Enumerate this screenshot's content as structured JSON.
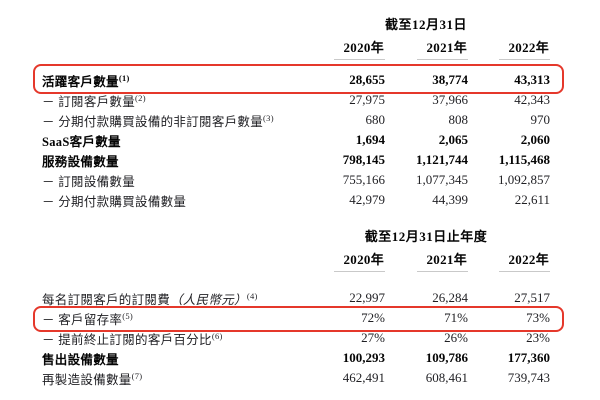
{
  "accent": {
    "highlight_red": "#e5382b",
    "underline_gray": "#c9c9c9"
  },
  "sections": [
    {
      "header": "截至12月31日",
      "years": [
        "2020年",
        "2021年",
        "2022年"
      ],
      "rows": [
        {
          "label": "活躍客戶數量",
          "sup": "(1)",
          "values": [
            "28,655",
            "38,774",
            "43,313"
          ],
          "bold": true,
          "highlighted": true
        },
        {
          "label": "－ 訂閱客戶數量",
          "sup": "(2)",
          "values": [
            "27,975",
            "37,966",
            "42,343"
          ],
          "bold": false,
          "highlighted": false
        },
        {
          "label": "－ 分期付款購買設備的非訂閱客戶數量",
          "sup": "(3)",
          "values": [
            "680",
            "808",
            "970"
          ],
          "bold": false,
          "highlighted": false
        },
        {
          "label": "SaaS客戶數量",
          "sup": "",
          "values": [
            "1,694",
            "2,065",
            "2,060"
          ],
          "bold": true,
          "highlighted": false
        },
        {
          "label": "服務設備數量",
          "sup": "",
          "values": [
            "798,145",
            "1,121,744",
            "1,115,468"
          ],
          "bold": true,
          "highlighted": false
        },
        {
          "label": "－ 訂閱設備數量",
          "sup": "",
          "values": [
            "755,166",
            "1,077,345",
            "1,092,857"
          ],
          "bold": false,
          "highlighted": false
        },
        {
          "label": "－ 分期付款購買設備數量",
          "sup": "",
          "values": [
            "42,979",
            "44,399",
            "22,611"
          ],
          "bold": false,
          "highlighted": false
        }
      ]
    },
    {
      "header": "截至12月31日止年度",
      "years": [
        "2020年",
        "2021年",
        "2022年"
      ],
      "rows": [
        {
          "label": "每名訂閱客戶的訂閱費",
          "label_italic": "（人民幣元）",
          "sup": "(4)",
          "values": [
            "22,997",
            "26,284",
            "27,517"
          ],
          "bold": false,
          "highlighted": false
        },
        {
          "label": "－ 客戶留存率",
          "sup": "(5)",
          "values": [
            "72%",
            "71%",
            "73%"
          ],
          "bold": false,
          "highlighted": true
        },
        {
          "label": "－ 提前終止訂閱的客戶百分比",
          "sup": "(6)",
          "values": [
            "27%",
            "26%",
            "23%"
          ],
          "bold": false,
          "highlighted": false
        },
        {
          "label": "售出設備數量",
          "sup": "",
          "values": [
            "100,293",
            "109,786",
            "177,360"
          ],
          "bold": true,
          "highlighted": false
        },
        {
          "label": "再製造設備數量",
          "sup": "(7)",
          "values": [
            "462,491",
            "608,461",
            "739,743"
          ],
          "bold": false,
          "highlighted": false
        }
      ]
    }
  ]
}
